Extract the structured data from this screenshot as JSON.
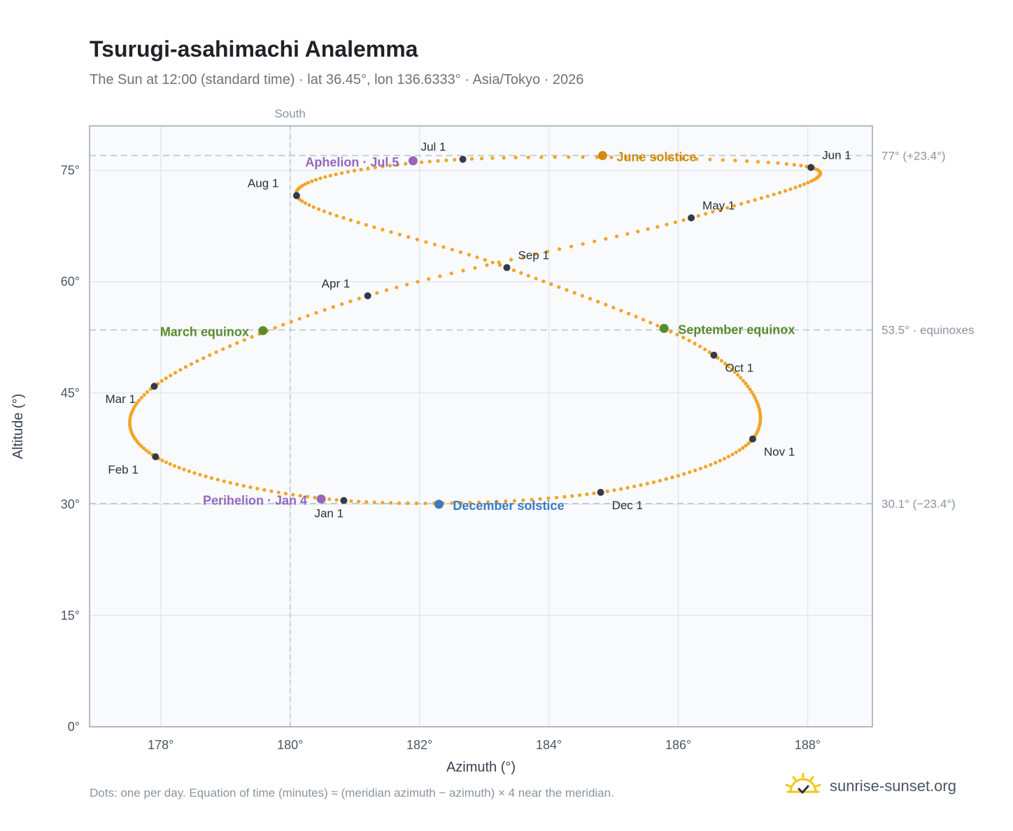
{
  "header": {
    "title": "Tsurugi-asahimachi Analemma",
    "subtitle": "The Sun at 12:00 (standard time) · lat 36.45°, lon 136.6333° · Asia/Tokyo · 2026"
  },
  "footer": {
    "note": "Dots: one per day. Equation of time (minutes) ≈ (meridian azimuth − azimuth) × 4 near the meridian.",
    "brand": "sunrise-sunset.org",
    "brand_icon": "sun-check-icon"
  },
  "colors": {
    "path": "#f2a427",
    "month_marker": "#343a46",
    "solstice_june": "#d08a10",
    "solstice_december": "#3a7bbf",
    "equinox": "#5a8a2d",
    "apsis": "#9467bd",
    "reference_line": "#b8c2ce",
    "plot_bg": "#f8fafc",
    "grid": "#e3e8ee",
    "frame": "#9aa5b4"
  },
  "chart_data": {
    "type": "scatter",
    "xlabel": "Azimuth (°)",
    "ylabel": "Altitude (°)",
    "xlim": [
      176.9,
      189.0
    ],
    "ylim": [
      0,
      81
    ],
    "x_ticks": [
      178,
      180,
      182,
      184,
      186,
      188
    ],
    "x_tick_labels": [
      "178°",
      "180°",
      "182°",
      "184°",
      "186°",
      "188°"
    ],
    "y_ticks": [
      0,
      15,
      30,
      45,
      60,
      75
    ],
    "y_tick_labels": [
      "0°",
      "15°",
      "30°",
      "45°",
      "60°",
      "75°"
    ],
    "grid": true,
    "south_line": {
      "x": 180,
      "label": "South"
    },
    "reference_lines": [
      {
        "y": 77.0,
        "label": "77° (+23.4°)"
      },
      {
        "y": 53.5,
        "label": "53.5° · equinoxes"
      },
      {
        "y": 30.1,
        "label": "30.1° (−23.4°)"
      }
    ],
    "month_markers": [
      {
        "label": "Jan 1",
        "az": 180.83,
        "alt": 30.5
      },
      {
        "label": "Feb 1",
        "az": 177.92,
        "alt": 36.4
      },
      {
        "label": "Mar 1",
        "az": 177.9,
        "alt": 45.9
      },
      {
        "label": "Apr 1",
        "az": 181.2,
        "alt": 58.1
      },
      {
        "label": "May 1",
        "az": 186.2,
        "alt": 68.6
      },
      {
        "label": "Jun 1",
        "az": 188.05,
        "alt": 75.4
      },
      {
        "label": "Jul 1",
        "az": 182.67,
        "alt": 76.5
      },
      {
        "label": "Aug 1",
        "az": 180.1,
        "alt": 71.6
      },
      {
        "label": "Sep 1",
        "az": 183.35,
        "alt": 61.9
      },
      {
        "label": "Oct 1",
        "az": 186.55,
        "alt": 50.1
      },
      {
        "label": "Nov 1",
        "az": 187.15,
        "alt": 38.8
      },
      {
        "label": "Dec 1",
        "az": 184.8,
        "alt": 31.6
      }
    ],
    "events": [
      {
        "label": "June solstice",
        "az": 184.83,
        "alt": 77.0,
        "kind": "solstice_june"
      },
      {
        "label": "December solstice",
        "az": 182.3,
        "alt": 30.0,
        "kind": "solstice_december"
      },
      {
        "label": "March equinox",
        "az": 179.58,
        "alt": 53.4,
        "kind": "equinox"
      },
      {
        "label": "September equinox",
        "az": 185.78,
        "alt": 53.7,
        "kind": "equinox"
      },
      {
        "label": "Aphelion · Jul 5",
        "az": 181.9,
        "alt": 76.3,
        "kind": "apsis"
      },
      {
        "label": "Perihelion · Jan 4",
        "az": 180.48,
        "alt": 30.7,
        "kind": "apsis"
      }
    ]
  }
}
